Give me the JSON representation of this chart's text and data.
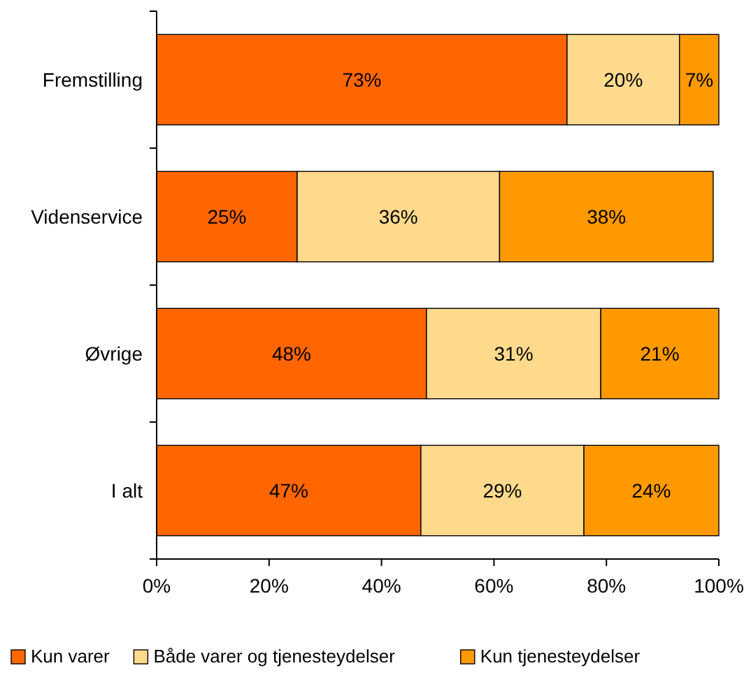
{
  "chart_data": {
    "type": "bar",
    "orientation": "horizontal",
    "stacked": true,
    "categories": [
      "Fremstilling",
      "Videnservice",
      "Øvrige",
      "I alt"
    ],
    "series": [
      {
        "name": "Kun varer",
        "color": "#ff6600",
        "values": [
          73,
          25,
          48,
          47
        ],
        "value_labels": [
          "73%",
          "25%",
          "48%",
          "47%"
        ]
      },
      {
        "name": "Både varer og tjenesteydelser",
        "color": "#ffd98c",
        "values": [
          20,
          36,
          31,
          29
        ],
        "value_labels": [
          "20%",
          "36%",
          "31%",
          "29%"
        ]
      },
      {
        "name": "Kun tjenesteydelser",
        "color": "#ff9900",
        "values": [
          7,
          38,
          21,
          24
        ],
        "value_labels": [
          "7%",
          "38%",
          "21%",
          "24%"
        ]
      }
    ],
    "xlim": [
      0,
      100
    ],
    "xticks": [
      {
        "value": 0,
        "label": "0%"
      },
      {
        "value": 20,
        "label": "20%"
      },
      {
        "value": 40,
        "label": "40%"
      },
      {
        "value": 60,
        "label": "60%"
      },
      {
        "value": 80,
        "label": "80%"
      },
      {
        "value": 100,
        "label": "100%"
      }
    ],
    "legend": "bottom"
  }
}
